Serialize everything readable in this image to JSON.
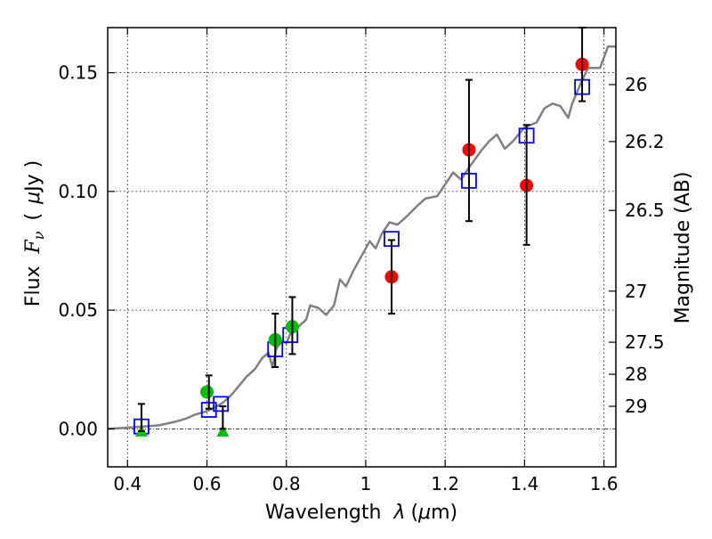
{
  "chart_data": {
    "type": "scatter",
    "xlabel_text": "Wavelength",
    "xlabel_symbol": "λ",
    "xlabel_unit_open": "(",
    "xlabel_unit_mu": "μ",
    "xlabel_unit_rest": "m)",
    "ylabel_text": "Flux",
    "ylabel_symbol_main": "F",
    "ylabel_symbol_sub": "ν",
    "ylabel_unit_open": "(",
    "ylabel_unit_mu": "μ",
    "ylabel_unit_rest": "Jy )",
    "y2label": "Magnitude (AB)",
    "xlim": [
      0.35,
      1.63
    ],
    "ylim": [
      -0.016,
      0.169
    ],
    "x_ticks": [
      0.4,
      0.6,
      0.8,
      1.0,
      1.2,
      1.4,
      1.6
    ],
    "x_tick_labels": [
      "0.4",
      "0.6",
      "0.8",
      "1",
      "1.2",
      "1.4",
      "1.6"
    ],
    "y_ticks": [
      0.0,
      0.05,
      0.1,
      0.15
    ],
    "y_tick_labels": [
      "0.00",
      "0.05",
      "0.10",
      "0.15"
    ],
    "y2_ticks": [
      {
        "label": "26",
        "flux": 0.145
      },
      {
        "label": "26.2",
        "flux": 0.121
      },
      {
        "label": "26.5",
        "flux": 0.092
      },
      {
        "label": "27",
        "flux": 0.058
      },
      {
        "label": "27.5",
        "flux": 0.0365
      },
      {
        "label": "28",
        "flux": 0.023
      },
      {
        "label": "29",
        "flux": 0.0095
      }
    ],
    "grid": true,
    "colors": {
      "model": "#808080",
      "red": "#ff0000",
      "green": "#00c000",
      "blue": "#0000ff",
      "errorbar": "#000000"
    },
    "series": [
      {
        "kind": "line",
        "points": [
          [
            0.35,
            0.0
          ],
          [
            0.4,
            0.0005
          ],
          [
            0.44,
            0.001
          ],
          [
            0.48,
            0.0015
          ],
          [
            0.52,
            0.003
          ],
          [
            0.55,
            0.0045
          ],
          [
            0.57,
            0.006
          ],
          [
            0.6,
            0.0075
          ],
          [
            0.62,
            0.009
          ],
          [
            0.64,
            0.011
          ],
          [
            0.66,
            0.014
          ],
          [
            0.68,
            0.018
          ],
          [
            0.7,
            0.022
          ],
          [
            0.72,
            0.025
          ],
          [
            0.74,
            0.03
          ],
          [
            0.755,
            0.032
          ],
          [
            0.765,
            0.026
          ],
          [
            0.775,
            0.034
          ],
          [
            0.79,
            0.037
          ],
          [
            0.8,
            0.036
          ],
          [
            0.81,
            0.04
          ],
          [
            0.83,
            0.043
          ],
          [
            0.85,
            0.046
          ],
          [
            0.86,
            0.052
          ],
          [
            0.88,
            0.051
          ],
          [
            0.9,
            0.048
          ],
          [
            0.92,
            0.052
          ],
          [
            0.935,
            0.063
          ],
          [
            0.95,
            0.06
          ],
          [
            0.97,
            0.067
          ],
          [
            0.99,
            0.073
          ],
          [
            1.01,
            0.079
          ],
          [
            1.025,
            0.076
          ],
          [
            1.04,
            0.082
          ],
          [
            1.06,
            0.087
          ],
          [
            1.08,
            0.086
          ],
          [
            1.1,
            0.089
          ],
          [
            1.13,
            0.094
          ],
          [
            1.15,
            0.097
          ],
          [
            1.18,
            0.098
          ],
          [
            1.2,
            0.103
          ],
          [
            1.22,
            0.108
          ],
          [
            1.24,
            0.105
          ],
          [
            1.26,
            0.11
          ],
          [
            1.29,
            0.117
          ],
          [
            1.31,
            0.121
          ],
          [
            1.33,
            0.124
          ],
          [
            1.35,
            0.118
          ],
          [
            1.37,
            0.121
          ],
          [
            1.4,
            0.127
          ],
          [
            1.43,
            0.129
          ],
          [
            1.45,
            0.135
          ],
          [
            1.47,
            0.137
          ],
          [
            1.49,
            0.136
          ],
          [
            1.51,
            0.131
          ],
          [
            1.52,
            0.137
          ],
          [
            1.54,
            0.145
          ],
          [
            1.56,
            0.152
          ],
          [
            1.59,
            0.152
          ],
          [
            1.61,
            0.161
          ],
          [
            1.63,
            0.161
          ]
        ]
      },
      {
        "kind": "marker",
        "marker": "square",
        "points": [
          [
            0.435,
            0.001
          ],
          [
            0.605,
            0.008
          ],
          [
            0.635,
            0.0105
          ],
          [
            0.772,
            0.0335
          ],
          [
            0.81,
            0.0395
          ],
          [
            1.065,
            0.08
          ],
          [
            1.26,
            0.1045
          ],
          [
            1.405,
            0.1235
          ],
          [
            1.545,
            0.144
          ]
        ]
      },
      {
        "kind": "marker",
        "marker": "circle",
        "color": "green",
        "points": [
          [
            0.6,
            0.0155
          ],
          [
            0.772,
            0.0375
          ],
          [
            0.815,
            0.043
          ]
        ]
      },
      {
        "kind": "marker",
        "marker": "triangle",
        "points": [
          [
            0.435,
            -0.001
          ],
          [
            0.64,
            -0.001
          ]
        ]
      },
      {
        "kind": "marker",
        "marker": "circle",
        "color": "red",
        "points": [
          [
            1.065,
            0.064
          ],
          [
            1.26,
            0.1175
          ],
          [
            1.405,
            0.1025
          ],
          [
            1.545,
            0.1535
          ]
        ]
      },
      {
        "kind": "errorbar",
        "bars": [
          {
            "x": 0.435,
            "low": -0.001,
            "high": 0.0105
          },
          {
            "x": 0.605,
            "low": 0.0085,
            "high": 0.0225
          },
          {
            "x": 0.64,
            "low": 0.0,
            "high": 0.0095
          },
          {
            "x": 0.772,
            "low": 0.026,
            "high": 0.0485
          },
          {
            "x": 0.815,
            "low": 0.0315,
            "high": 0.0555
          },
          {
            "x": 1.065,
            "low": 0.0485,
            "high": 0.0795
          },
          {
            "x": 1.26,
            "low": 0.0875,
            "high": 0.147
          },
          {
            "x": 1.405,
            "low": 0.0775,
            "high": 0.128
          },
          {
            "x": 1.545,
            "low": 0.138,
            "high": 0.169
          }
        ]
      }
    ]
  }
}
